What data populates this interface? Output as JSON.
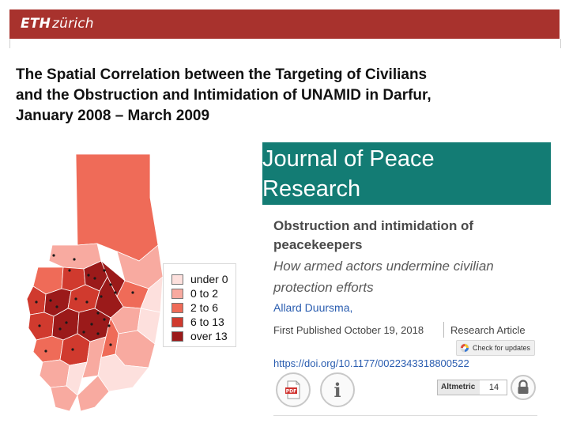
{
  "header": {
    "logo_bold": "ETH",
    "logo_rest": "zürich",
    "bar_color": "#a8322d"
  },
  "slide": {
    "title_lines": [
      "The Spatial Correlation between the Targeting of Civilians",
      "and the Obstruction and Intimidation of UNAMID in Darfur,",
      "January 2008 – March 2009"
    ]
  },
  "map": {
    "legend": [
      {
        "label": "under 0",
        "color": "#fde0dd"
      },
      {
        "label": "0 to 2",
        "color": "#f8aaa0"
      },
      {
        "label": "2 to 6",
        "color": "#ef6b58"
      },
      {
        "label": "6 to 13",
        "color": "#d03a2e"
      },
      {
        "label": "over 13",
        "color": "#9b1a1a"
      }
    ]
  },
  "journal": {
    "name_line1": "Journal of Peace",
    "name_line2": "Research",
    "banner_color": "#137c74",
    "article_title_line1": "Obstruction and intimidation of",
    "article_title_line2": "peacekeepers",
    "subtitle_line1": "How armed actors undermine civilian",
    "subtitle_line2": "protection efforts",
    "author": "Allard Duursma,",
    "published": "First Published October 19, 2018",
    "article_type": "Research Article",
    "check_updates": "Check for updates",
    "doi": "https://doi.org/10.1177/0022343318800522",
    "altmetric_label": "Altmetric",
    "altmetric_count": "14",
    "icons": [
      "pdf-icon",
      "info-icon",
      "lock-icon"
    ]
  }
}
